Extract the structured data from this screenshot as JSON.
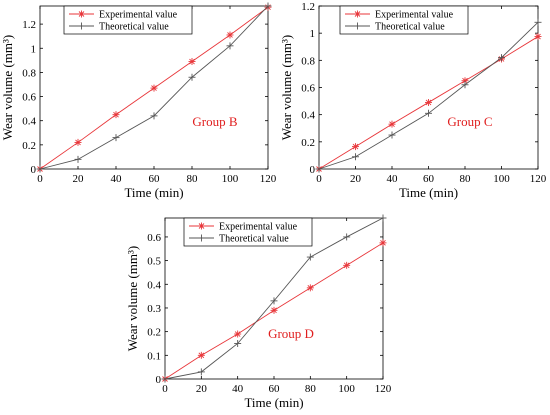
{
  "colors": {
    "experimental": "#e8363a",
    "theoretical": "#555555",
    "group_label": "#e01e1e"
  },
  "chart_data": [
    {
      "type": "line",
      "group_label": "Group B",
      "xlabel": "Time (min)",
      "ylabel": "Wear volume (mm³)",
      "xlim": [
        0,
        120
      ],
      "ylim": [
        0,
        1.35
      ],
      "x_ticks": [
        0,
        20,
        40,
        60,
        80,
        100,
        120
      ],
      "y_ticks": [
        0,
        0.2,
        0.4,
        0.6,
        0.8,
        1,
        1.2
      ],
      "x_tick_labels": [
        "0",
        "20",
        "40",
        "60",
        "80",
        "100",
        "120"
      ],
      "y_tick_labels": [
        "0",
        "0.2",
        "0.4",
        "0.6",
        "0.8",
        "1",
        "1.2"
      ],
      "x": [
        0,
        20,
        40,
        60,
        80,
        100,
        120
      ],
      "legend_position": "top-center",
      "series": [
        {
          "name": "Experimental value",
          "marker": "asterisk",
          "values": [
            0,
            0.22,
            0.45,
            0.67,
            0.89,
            1.11,
            1.34
          ]
        },
        {
          "name": "Theoretical value",
          "marker": "plus",
          "values": [
            0,
            0.08,
            0.26,
            0.44,
            0.76,
            1.02,
            1.35
          ]
        }
      ]
    },
    {
      "type": "line",
      "group_label": "Group C",
      "xlabel": "Time (min)",
      "ylabel": "Wear volume (mm³)",
      "xlim": [
        0,
        120
      ],
      "ylim": [
        0,
        1.2
      ],
      "x_ticks": [
        0,
        20,
        40,
        60,
        80,
        100,
        120
      ],
      "y_ticks": [
        0,
        0.2,
        0.4,
        0.6,
        0.8,
        1,
        1.2
      ],
      "x_tick_labels": [
        "0",
        "20",
        "40",
        "60",
        "80",
        "100",
        "120"
      ],
      "y_tick_labels": [
        "0",
        "0.2",
        "0.4",
        "0.6",
        "0.8",
        "1",
        "1.2"
      ],
      "x": [
        0,
        20,
        40,
        60,
        80,
        100,
        120
      ],
      "legend_position": "top-center",
      "series": [
        {
          "name": "Experimental value",
          "marker": "asterisk",
          "values": [
            0,
            0.165,
            0.33,
            0.49,
            0.65,
            0.81,
            0.975
          ]
        },
        {
          "name": "Theoretical value",
          "marker": "plus",
          "values": [
            0,
            0.09,
            0.25,
            0.41,
            0.62,
            0.82,
            1.08
          ]
        }
      ]
    },
    {
      "type": "line",
      "group_label": "Group D",
      "xlabel": "Time (min)",
      "ylabel": "Wear volume (mm³)",
      "xlim": [
        0,
        120
      ],
      "ylim": [
        0,
        0.68
      ],
      "x_ticks": [
        0,
        20,
        40,
        60,
        80,
        100,
        120
      ],
      "y_ticks": [
        0,
        0.1,
        0.2,
        0.3,
        0.4,
        0.5,
        0.6
      ],
      "x_tick_labels": [
        "0",
        "20",
        "40",
        "60",
        "80",
        "100",
        "120"
      ],
      "y_tick_labels": [
        "0",
        "0.1",
        "0.2",
        "0.3",
        "0.4",
        "0.5",
        "0.6"
      ],
      "x": [
        0,
        20,
        40,
        60,
        80,
        100,
        120
      ],
      "legend_position": "top-center",
      "series": [
        {
          "name": "Experimental value",
          "marker": "asterisk",
          "values": [
            0,
            0.1,
            0.19,
            0.29,
            0.385,
            0.48,
            0.575
          ]
        },
        {
          "name": "Theoretical value",
          "marker": "plus",
          "values": [
            0,
            0.03,
            0.15,
            0.33,
            0.515,
            0.6,
            0.68
          ]
        }
      ]
    }
  ]
}
